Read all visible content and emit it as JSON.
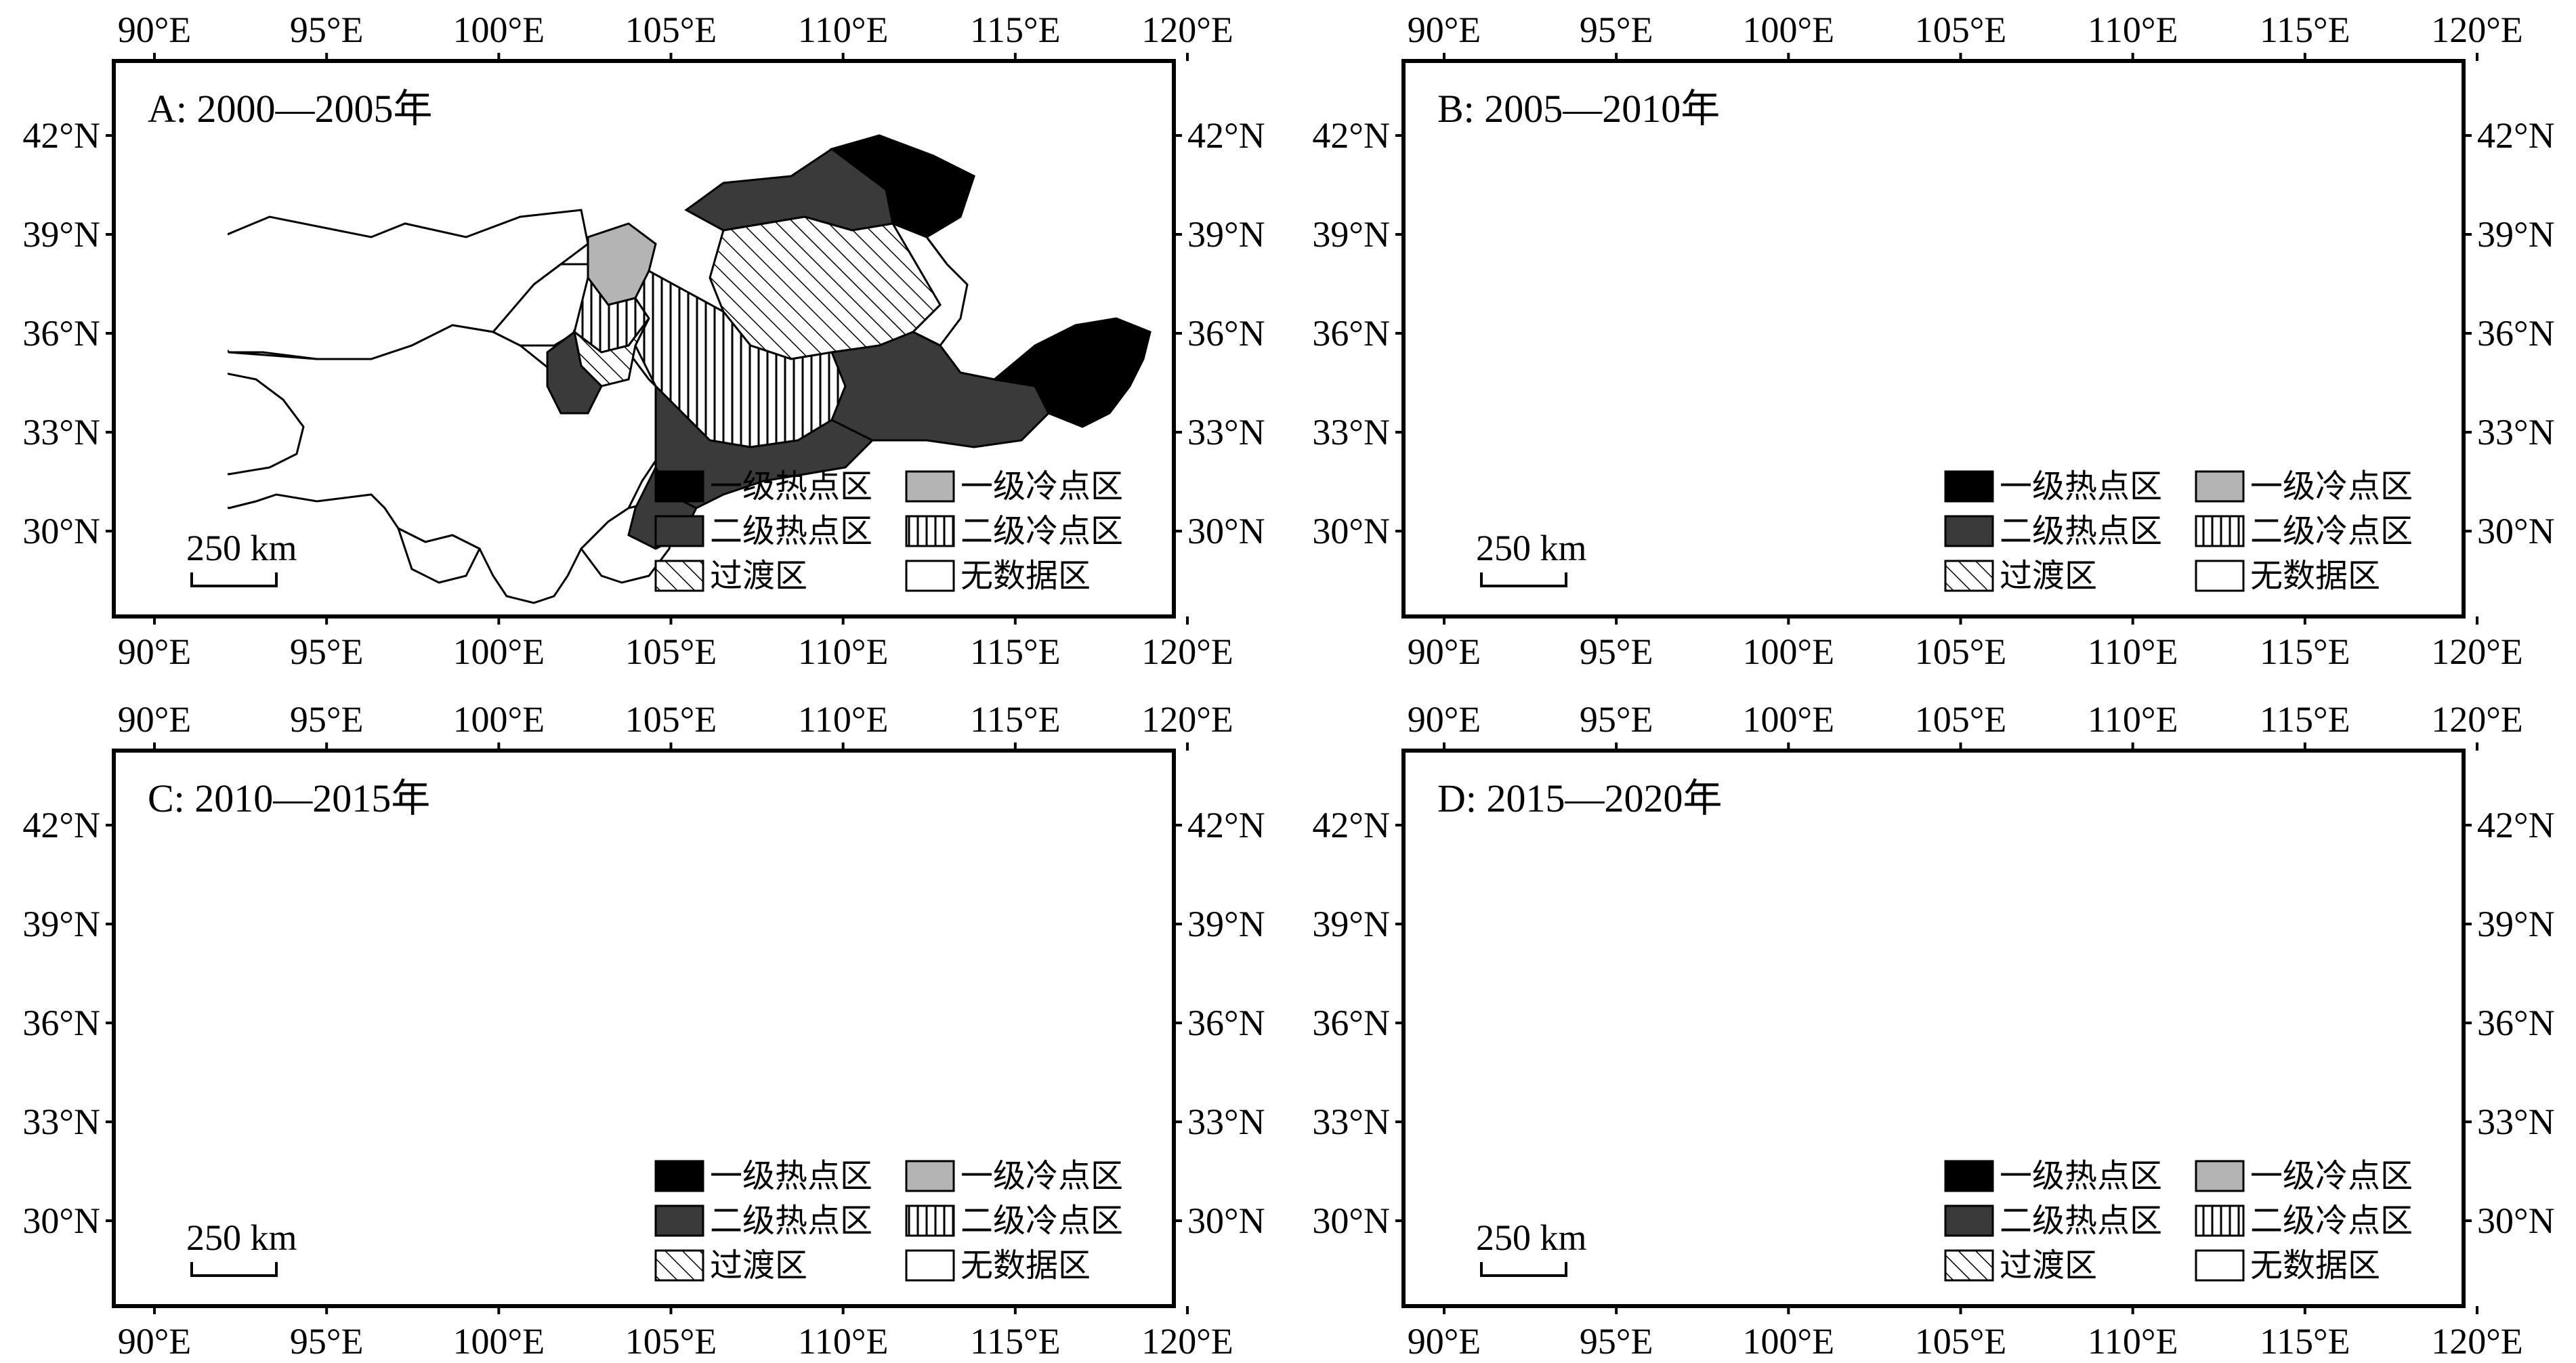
{
  "panels": [
    {
      "id": "A",
      "title": "A: 2000—2005年"
    },
    {
      "id": "B",
      "title": "B: 2005—2010年"
    },
    {
      "id": "C",
      "title": "C: 2010—2015年"
    },
    {
      "id": "D",
      "title": "D: 2015—2020年"
    }
  ],
  "axes": {
    "lon_labels": [
      "90°E",
      "95°E",
      "100°E",
      "105°E",
      "110°E",
      "115°E",
      "120°E"
    ],
    "lat_labels": [
      "42°N",
      "39°N",
      "36°N",
      "33°N",
      "30°N"
    ]
  },
  "legend": {
    "level1_hot": "一级热点区",
    "level2_hot": "二级热点区",
    "transition": "过渡区",
    "level1_cold": "一级冷点区",
    "level2_cold": "二级冷点区",
    "no_data": "无数据区"
  },
  "scale_bar": {
    "label": "250 km"
  },
  "colors": {
    "level1_hot": "#000000",
    "level2_hot": "#3a3a3a",
    "level1_cold": "#b4b4b4",
    "level2_cold_pattern": "vertical-lines",
    "transition_pattern": "diagonal-lines",
    "no_data": "#ffffff"
  }
}
